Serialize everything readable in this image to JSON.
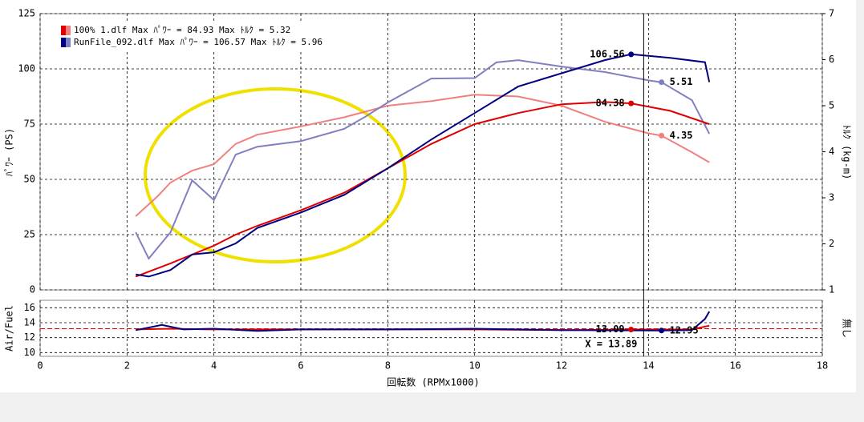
{
  "chart_data": {
    "type": "line",
    "xlabel": "回転数 (RPMx1000)",
    "ylabel": "ﾊﾟﾜｰ (PS)",
    "y2label": "ﾄﾙｸ (kg-m)",
    "y3label": "Air/Fuel",
    "y3label_right": "無し",
    "legend": [
      "100% 1.dlf Max ﾊﾟﾜｰ = 84.93  Max ﾄﾙｸ = 5.32",
      "RunFile_092.dlf Max ﾊﾟﾜｰ = 106.57  Max ﾄﾙｸ = 5.96"
    ],
    "legend_colors": [
      [
        "#e00000",
        "#f08080"
      ],
      [
        "#000080",
        "#8080c0"
      ]
    ],
    "xlim": [
      0,
      18
    ],
    "xticks": [
      0,
      2,
      4,
      6,
      8,
      10,
      12,
      14,
      16,
      18
    ],
    "ylim": [
      0,
      125
    ],
    "yticks": [
      0,
      25,
      50,
      75,
      100,
      125
    ],
    "y2lim": [
      1,
      7
    ],
    "y2ticks": [
      1,
      2,
      3,
      4,
      5,
      6,
      7
    ],
    "y3lim": [
      9.5,
      17
    ],
    "y3ticks": [
      10,
      12,
      14,
      16
    ],
    "grid": true,
    "series": [
      {
        "color": "#f08080",
        "axis": "y2",
        "x": [
          2.2,
          2.7,
          3,
          3.5,
          4,
          4.5,
          5,
          6,
          7,
          8,
          9,
          10,
          11,
          12,
          13,
          14,
          14.3,
          15,
          15.4
        ],
        "values": [
          2.6,
          3.03,
          3.33,
          3.59,
          3.73,
          4.17,
          4.37,
          4.55,
          4.75,
          5.0,
          5.1,
          5.24,
          5.2,
          5.0,
          4.65,
          4.4,
          4.35,
          3.99,
          3.77
        ]
      },
      {
        "color": "#8080c0",
        "axis": "y2",
        "x": [
          2.2,
          2.5,
          3,
          3.5,
          4,
          4.5,
          5,
          6,
          7,
          7.5,
          8,
          9,
          10,
          10.5,
          11,
          12,
          13,
          14,
          14.3,
          15,
          15.4
        ],
        "values": [
          2.25,
          1.68,
          2.25,
          3.38,
          2.95,
          3.94,
          4.11,
          4.23,
          4.5,
          4.77,
          5.07,
          5.59,
          5.6,
          5.94,
          5.99,
          5.85,
          5.73,
          5.55,
          5.51,
          5.12,
          4.39
        ]
      },
      {
        "color": "#e00000",
        "axis": "y",
        "x": [
          2.2,
          3,
          4,
          4.5,
          5,
          6,
          7,
          8,
          9,
          10,
          11,
          12,
          13,
          13.6,
          14.5,
          15.4
        ],
        "values": [
          6,
          12,
          20,
          25,
          29,
          36,
          44,
          55,
          66,
          75,
          80,
          84,
          85,
          84.4,
          81,
          75
        ]
      },
      {
        "color": "#000080",
        "axis": "y",
        "x": [
          2.2,
          2.5,
          3,
          3.5,
          4,
          4.5,
          5,
          6,
          7,
          8,
          9,
          10,
          11,
          12,
          13,
          13.6,
          14.5,
          15.3,
          15.4
        ],
        "values": [
          7,
          6,
          9,
          16,
          17,
          21,
          28,
          35,
          43,
          55,
          68,
          80,
          92,
          98,
          104,
          106.6,
          105,
          103,
          94
        ]
      },
      {
        "color": "#e00000",
        "axis": "y3",
        "x": [
          2.2,
          3,
          4,
          6,
          8,
          10,
          12,
          13.6,
          15,
          15.4
        ],
        "values": [
          13.1,
          13.2,
          13.1,
          13.1,
          13.1,
          13.1,
          13.0,
          13.09,
          13.1,
          13.6
        ]
      },
      {
        "color": "#000080",
        "axis": "y3",
        "x": [
          2.2,
          2.8,
          3.3,
          4,
          5,
          6,
          8,
          10,
          12,
          14.3,
          15,
          15.3,
          15.4
        ],
        "values": [
          13.0,
          13.7,
          13.1,
          13.2,
          12.9,
          13.1,
          13.1,
          13.2,
          13.0,
          12.95,
          13.0,
          14.5,
          15.5
        ]
      }
    ],
    "reference_y3": 13.2,
    "markers": [
      {
        "x": 13.6,
        "value": 106.56,
        "axis": "y",
        "color": "#000080"
      },
      {
        "x": 14.3,
        "value": 5.51,
        "axis": "y2",
        "color": "#8080c0"
      },
      {
        "x": 13.6,
        "value": 84.38,
        "axis": "y",
        "color": "#e00000"
      },
      {
        "x": 14.3,
        "value": 4.35,
        "axis": "y2",
        "color": "#f08080"
      },
      {
        "x": 13.6,
        "value": 13.09,
        "axis": "y3",
        "color": "#e00000"
      },
      {
        "x": 14.3,
        "value": 12.95,
        "axis": "y3",
        "color": "#000080"
      }
    ],
    "cursor": {
      "value": 13.89,
      "label": "X = 13.89"
    }
  }
}
